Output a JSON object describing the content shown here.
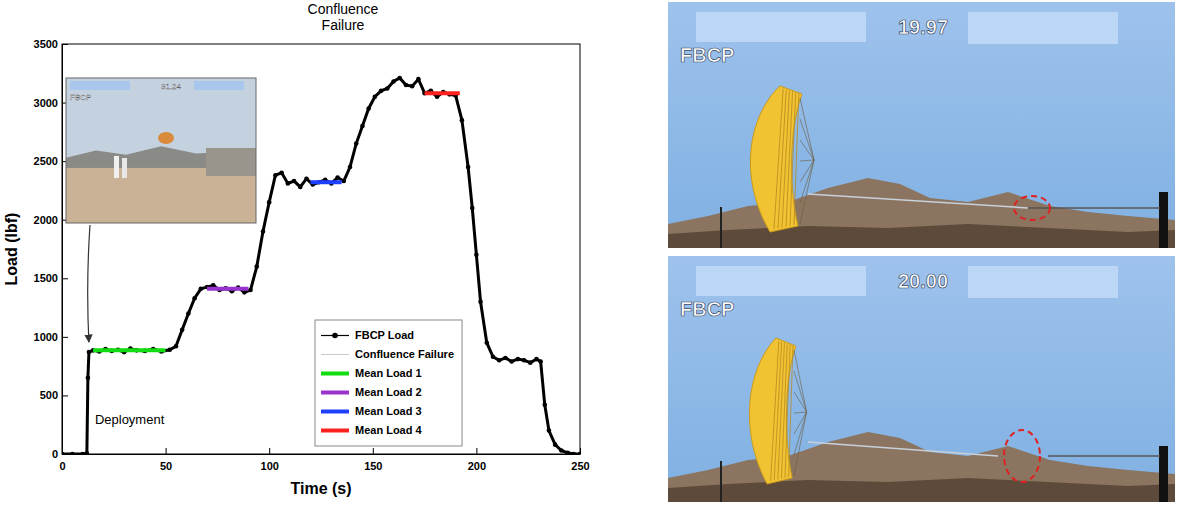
{
  "chart_data": {
    "type": "line",
    "title": "Confluence Failure",
    "x_label": "Time (s)",
    "y_label": "Load (lbf)",
    "xlim": [
      0,
      250
    ],
    "xticks": [
      0,
      50,
      100,
      150,
      200,
      250
    ],
    "ylim": [
      0,
      3500
    ],
    "yticks": [
      0,
      500,
      1000,
      1500,
      2000,
      2500,
      3000,
      3500
    ],
    "legend": "lower center",
    "annotations": [
      "Deployment"
    ],
    "series": [
      {
        "name": "FBCP Load",
        "color": "#000000",
        "marker": "circle",
        "x": [
          0,
          5,
          10,
          12,
          12.5,
          13,
          15,
          18,
          21,
          24,
          27,
          30,
          33,
          36,
          40,
          44,
          48,
          52,
          55,
          58,
          61,
          64,
          67,
          70,
          73,
          76,
          79,
          82,
          85,
          88,
          91,
          94,
          97,
          100,
          103,
          106,
          109,
          112,
          115,
          118,
          121,
          124,
          127,
          130,
          133,
          136,
          139,
          142,
          145,
          148,
          151,
          154,
          157,
          160,
          163,
          166,
          169,
          172,
          175,
          178,
          181,
          184,
          187,
          190,
          193,
          196,
          198,
          200,
          202,
          205,
          208,
          211,
          214,
          217,
          220,
          223,
          226,
          229,
          231,
          233,
          235,
          238,
          241,
          244,
          247,
          250
        ],
        "values": [
          0,
          0,
          0,
          5,
          650,
          870,
          885,
          875,
          895,
          880,
          890,
          870,
          900,
          885,
          880,
          895,
          875,
          890,
          920,
          1060,
          1200,
          1330,
          1410,
          1425,
          1440,
          1400,
          1415,
          1390,
          1420,
          1380,
          1400,
          1600,
          1900,
          2150,
          2380,
          2400,
          2310,
          2330,
          2280,
          2350,
          2300,
          2320,
          2340,
          2310,
          2360,
          2330,
          2450,
          2650,
          2800,
          2950,
          3050,
          3100,
          3120,
          3180,
          3210,
          3150,
          3140,
          3200,
          3080,
          3100,
          3050,
          3090,
          3070,
          3060,
          2850,
          2450,
          2100,
          1700,
          1300,
          950,
          830,
          800,
          820,
          790,
          810,
          800,
          780,
          810,
          790,
          420,
          200,
          80,
          30,
          10,
          0,
          0
        ]
      },
      {
        "name": "Confluence Failure",
        "color": "#c8c8c8",
        "x": [],
        "values": []
      },
      {
        "name": "Mean Load 1",
        "color": "#11dd11",
        "line_style": "solid",
        "x": [
          15,
          50
        ],
        "values": [
          885,
          885
        ]
      },
      {
        "name": "Mean Load 2",
        "color": "#9933cc",
        "line_style": "solid",
        "x": [
          70,
          90
        ],
        "values": [
          1410,
          1410
        ]
      },
      {
        "name": "Mean Load 3",
        "color": "#1f3fff",
        "line_style": "solid",
        "x": [
          120,
          135
        ],
        "values": [
          2320,
          2320
        ]
      },
      {
        "name": "Mean Load 4",
        "color": "#ff2020",
        "line_style": "solid",
        "x": [
          175,
          192
        ],
        "values": [
          3080,
          3080
        ]
      }
    ]
  },
  "images": {
    "inset": {
      "label": "FBCP",
      "timestamp": "31.24"
    },
    "frames": [
      {
        "label": "FBCP",
        "timestamp": "19.97"
      },
      {
        "label": "FBCP",
        "timestamp": "20.00"
      }
    ]
  }
}
